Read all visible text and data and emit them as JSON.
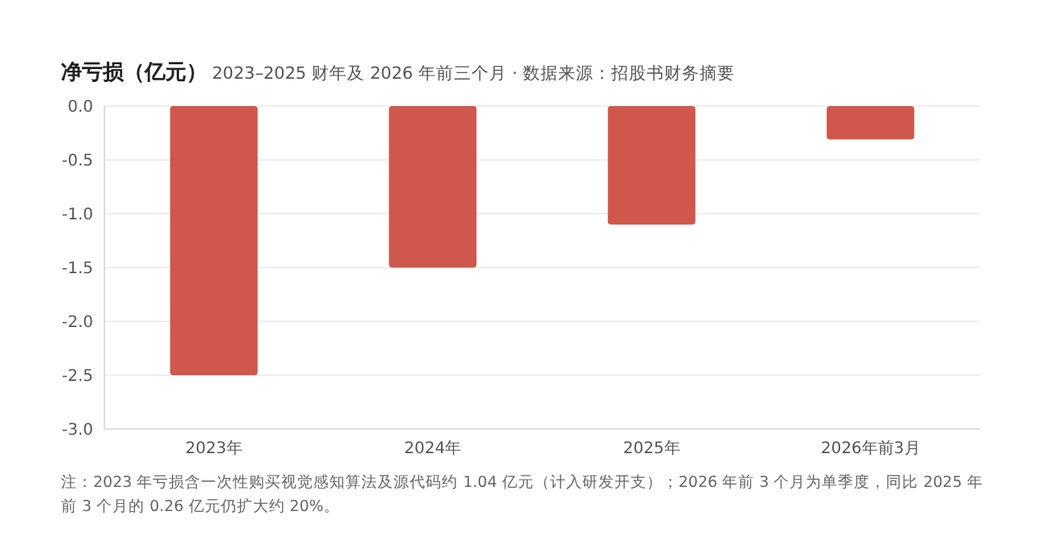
{
  "chart_data": {
    "type": "bar",
    "title": "净亏损（亿元）",
    "subtitle": "2023–2025 财年及 2026 年前三个月 · 数据来源：招股书财务摘要",
    "categories": [
      "2023年",
      "2024年",
      "2025年",
      "2026年前3月"
    ],
    "values": [
      -2.5,
      -1.5,
      -1.1,
      -0.31
    ],
    "color": "#d0574c",
    "ylim": [
      -3,
      0
    ],
    "yticks": [
      {
        "value": -3,
        "label": "-3.0"
      },
      {
        "value": -2.5,
        "label": "-2.5"
      },
      {
        "value": -2,
        "label": "-2.0"
      },
      {
        "value": -1.5,
        "label": "-1.5"
      },
      {
        "value": -1,
        "label": "-1.0"
      },
      {
        "value": -0.5,
        "label": "-0.5"
      },
      {
        "value": 0,
        "label": "0.0"
      }
    ],
    "grid": "y",
    "annotations": [
      "注：2023 年亏损含一次性购买视觉感知算法及源代码约 1.04 亿元（计入研发开支）；2026 年前 3 个月为单季度，同比 2025 年前 3 个月的 0.26 亿元仍扩大约 20%。"
    ]
  }
}
